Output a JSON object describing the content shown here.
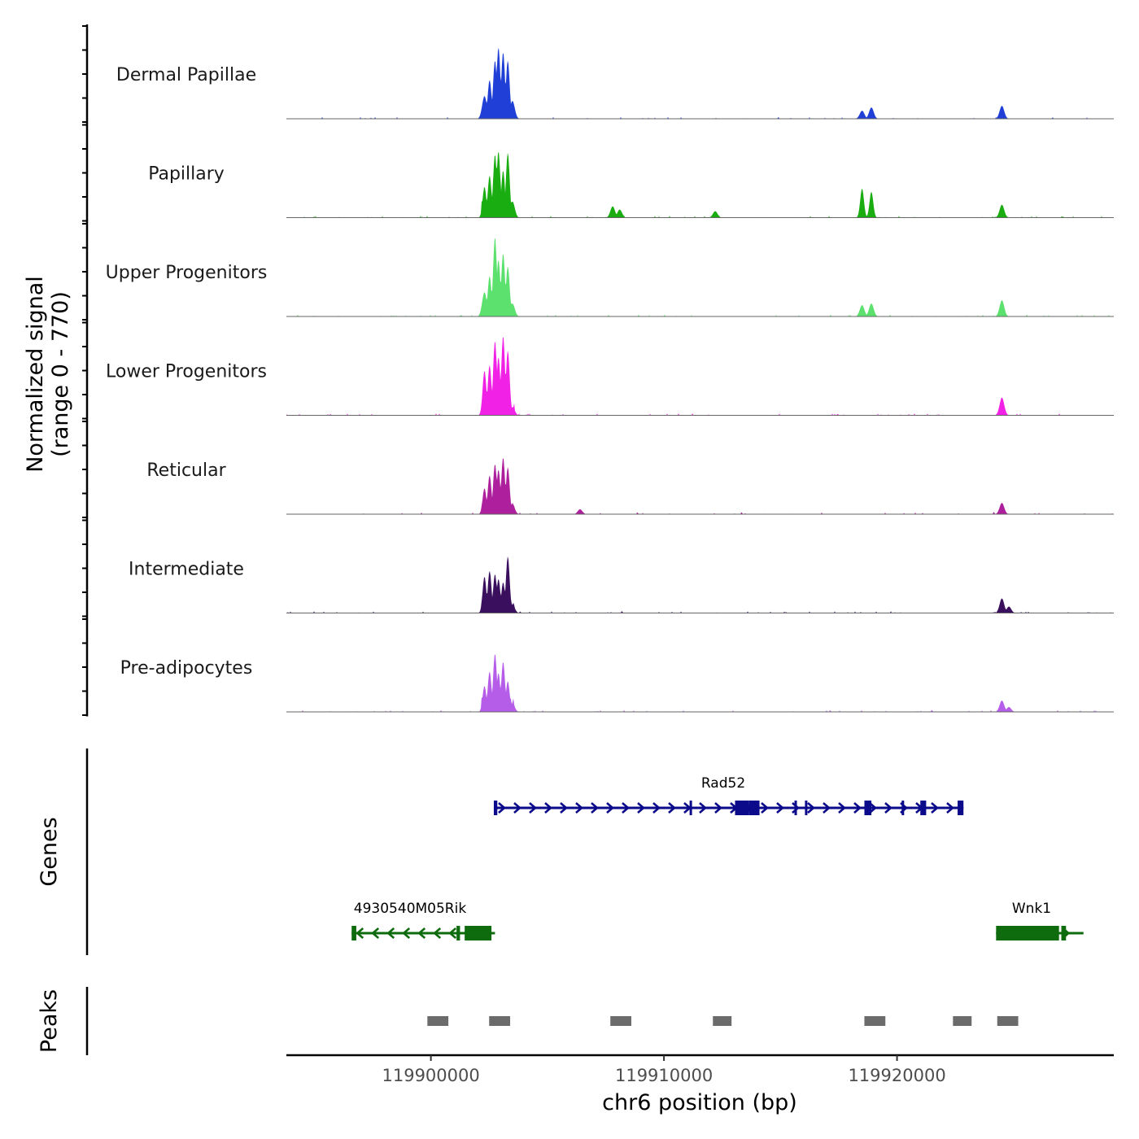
{
  "chart_data": {
    "type": "area",
    "title": "",
    "xlabel": "chr6 position (bp)",
    "ylabel_line1": "Normalized signal",
    "ylabel_line2": "(range 0 - 770)",
    "xlim": [
      119893800,
      119929300
    ],
    "ylim": [
      0,
      770
    ],
    "x_ticks": [
      {
        "value": 119900000,
        "label": "119900000"
      },
      {
        "value": 119910000,
        "label": "119910000"
      },
      {
        "value": 119920000,
        "label": "119920000"
      }
    ],
    "series": [
      {
        "name": "Dermal Papillae",
        "color": "#1f3fd6",
        "peaks": [
          [
            119902300,
            0.28
          ],
          [
            119902520,
            0.48
          ],
          [
            119902750,
            0.72
          ],
          [
            119902900,
            0.88
          ],
          [
            119903100,
            0.82
          ],
          [
            119903300,
            0.72
          ],
          [
            119903500,
            0.22
          ],
          [
            119918500,
            0.1
          ],
          [
            119918900,
            0.14
          ],
          [
            119924500,
            0.16
          ]
        ]
      },
      {
        "name": "Papillary",
        "color": "#1aad12",
        "peaks": [
          [
            119902300,
            0.38
          ],
          [
            119902520,
            0.52
          ],
          [
            119902750,
            0.78
          ],
          [
            119902900,
            0.82
          ],
          [
            119903100,
            0.58
          ],
          [
            119903300,
            0.8
          ],
          [
            119903500,
            0.2
          ],
          [
            119907800,
            0.14
          ],
          [
            119908100,
            0.1
          ],
          [
            119912200,
            0.08
          ],
          [
            119918500,
            0.36
          ],
          [
            119918900,
            0.32
          ],
          [
            119924500,
            0.16
          ]
        ]
      },
      {
        "name": "Upper Progenitors",
        "color": "#5ce06e",
        "peaks": [
          [
            119902300,
            0.3
          ],
          [
            119902520,
            0.5
          ],
          [
            119902750,
            0.98
          ],
          [
            119902900,
            0.7
          ],
          [
            119903100,
            0.78
          ],
          [
            119903300,
            0.62
          ],
          [
            119903500,
            0.16
          ],
          [
            119918500,
            0.14
          ],
          [
            119918900,
            0.16
          ],
          [
            119924500,
            0.2
          ]
        ]
      },
      {
        "name": "Lower Progenitors",
        "color": "#f221e6",
        "peaks": [
          [
            119902300,
            0.55
          ],
          [
            119902520,
            0.62
          ],
          [
            119902750,
            0.92
          ],
          [
            119902900,
            0.72
          ],
          [
            119903100,
            0.98
          ],
          [
            119903300,
            0.8
          ],
          [
            119903500,
            0.1
          ],
          [
            119924500,
            0.22
          ]
        ]
      },
      {
        "name": "Reticular",
        "color": "#ad1f9c",
        "peaks": [
          [
            119902300,
            0.32
          ],
          [
            119902520,
            0.48
          ],
          [
            119902750,
            0.62
          ],
          [
            119902900,
            0.55
          ],
          [
            119903100,
            0.7
          ],
          [
            119903300,
            0.58
          ],
          [
            119903500,
            0.12
          ],
          [
            119906400,
            0.06
          ],
          [
            119924500,
            0.14
          ]
        ]
      },
      {
        "name": "Intermediate",
        "color": "#3a0f5e",
        "peaks": [
          [
            119902300,
            0.45
          ],
          [
            119902520,
            0.52
          ],
          [
            119902750,
            0.48
          ],
          [
            119902900,
            0.42
          ],
          [
            119903100,
            0.38
          ],
          [
            119903300,
            0.7
          ],
          [
            119903500,
            0.1
          ],
          [
            119924500,
            0.18
          ],
          [
            119924800,
            0.08
          ]
        ]
      },
      {
        "name": "Pre-adipocytes",
        "color": "#b55ce8",
        "peaks": [
          [
            119902300,
            0.32
          ],
          [
            119902520,
            0.5
          ],
          [
            119902750,
            0.72
          ],
          [
            119902900,
            0.48
          ],
          [
            119903100,
            0.62
          ],
          [
            119903300,
            0.38
          ],
          [
            119903500,
            0.1
          ],
          [
            119924500,
            0.14
          ],
          [
            119924800,
            0.06
          ]
        ]
      }
    ],
    "genes_label": "Genes",
    "genes": [
      {
        "name": "Rad52",
        "strand": "+",
        "color": "#0a0a8a",
        "start": 119902700,
        "end": 119922850,
        "exons": [
          [
            119902700,
            119902850
          ],
          [
            119911100,
            119911200
          ],
          [
            119913050,
            119913650
          ],
          [
            119913650,
            119914100
          ],
          [
            119915600,
            119915700
          ],
          [
            119916050,
            119916150
          ],
          [
            119918600,
            119918900
          ],
          [
            119920200,
            119920300
          ],
          [
            119921000,
            119921250
          ],
          [
            119922600,
            119922850
          ]
        ]
      },
      {
        "name": "4930540M05Rik",
        "strand": "-",
        "color": "#0e6b0e",
        "start": 119896600,
        "end": 119902750,
        "exons": [
          [
            119896600,
            119896800
          ],
          [
            119901100,
            119901250
          ],
          [
            119901450,
            119902600
          ]
        ]
      },
      {
        "name": "Wnk1",
        "strand": "+",
        "color": "#0e6b0e",
        "start": 119924250,
        "end": 119928000,
        "exons": [
          [
            119924250,
            119926950
          ],
          [
            119927050,
            119927250
          ]
        ]
      }
    ],
    "peaks_label": "Peaks",
    "peak_regions": [
      [
        119899850,
        119900750
      ],
      [
        119902500,
        119903400
      ],
      [
        119907700,
        119908600
      ],
      [
        119912100,
        119912900
      ],
      [
        119918600,
        119919500
      ],
      [
        119922400,
        119923200
      ],
      [
        119924300,
        119925200
      ]
    ]
  }
}
